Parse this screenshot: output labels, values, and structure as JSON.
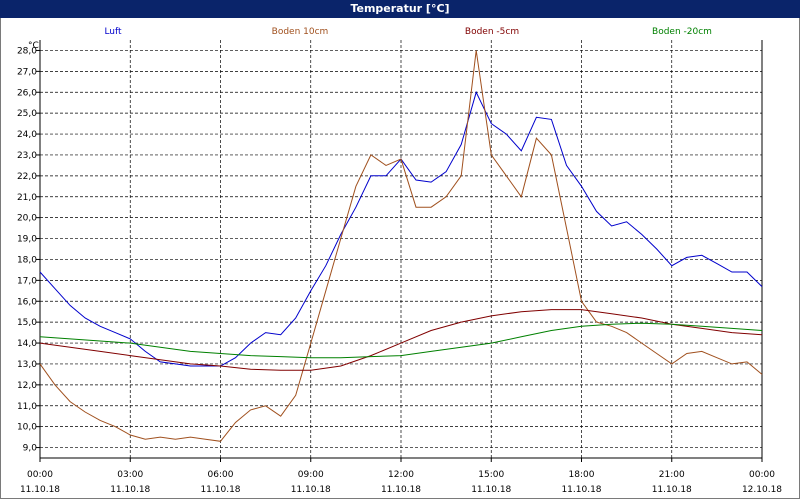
{
  "window": {
    "title": "Temperatur [°C]"
  },
  "chart_data": {
    "type": "line",
    "title": "Temperatur [°C]",
    "ylabel": "°C",
    "ylim": [
      8.5,
      28.5
    ],
    "yticks": [
      9.0,
      10.0,
      11.0,
      12.0,
      13.0,
      14.0,
      15.0,
      16.0,
      17.0,
      18.0,
      19.0,
      20.0,
      21.0,
      22.0,
      23.0,
      24.0,
      25.0,
      26.0,
      27.0,
      28.0
    ],
    "ytick_labels": [
      "9,0",
      "10,0",
      "11,0",
      "12,0",
      "13,0",
      "14,0",
      "15,0",
      "16,0",
      "17,0",
      "18,0",
      "19,0",
      "20,0",
      "21,0",
      "22,0",
      "23,0",
      "24,0",
      "25,0",
      "26,0",
      "27,0",
      "28,0"
    ],
    "xlim": [
      0,
      24
    ],
    "xticks": [
      {
        "time": "00:00",
        "date": "11.10.18"
      },
      {
        "time": "03:00",
        "date": "11.10.18"
      },
      {
        "time": "06:00",
        "date": "11.10.18"
      },
      {
        "time": "09:00",
        "date": "11.10.18"
      },
      {
        "time": "12:00",
        "date": "11.10.18"
      },
      {
        "time": "15:00",
        "date": "11.10.18"
      },
      {
        "time": "18:00",
        "date": "11.10.18"
      },
      {
        "time": "21:00",
        "date": "11.10.18"
      },
      {
        "time": "00:00",
        "date": "12.10.18"
      }
    ],
    "grid": true,
    "legend": "top",
    "series": [
      {
        "name": "Luft",
        "color": "#0000cc",
        "x": [
          0,
          0.5,
          1,
          1.5,
          2,
          2.5,
          3,
          3.5,
          4,
          4.5,
          5,
          5.5,
          6,
          6.5,
          7,
          7.5,
          8,
          8.5,
          9,
          9.5,
          10,
          10.5,
          11,
          11.5,
          12,
          12.5,
          13,
          13.5,
          14,
          14.5,
          15,
          15.5,
          16,
          16.5,
          17,
          17.5,
          18,
          18.5,
          19,
          19.5,
          20,
          20.5,
          21,
          21.5,
          22,
          22.5,
          23,
          23.5,
          24
        ],
        "y": [
          17.4,
          16.6,
          15.8,
          15.2,
          14.8,
          14.5,
          14.2,
          13.6,
          13.1,
          13.0,
          12.9,
          12.9,
          12.9,
          13.3,
          14.0,
          14.5,
          14.4,
          15.2,
          16.5,
          17.7,
          19.2,
          20.5,
          22.0,
          22.0,
          22.8,
          21.8,
          21.7,
          22.2,
          23.5,
          26.0,
          24.5,
          24.0,
          23.2,
          24.8,
          24.7,
          22.5,
          21.5,
          20.3,
          19.6,
          19.8,
          19.2,
          18.5,
          17.7,
          18.1,
          18.2,
          17.8,
          17.4,
          17.4,
          16.7
        ]
      },
      {
        "name": "Boden 10cm",
        "color": "#a0501e",
        "x": [
          0,
          0.5,
          1,
          1.5,
          2,
          2.5,
          3,
          3.5,
          4,
          4.5,
          5,
          5.5,
          6,
          6.5,
          7,
          7.5,
          8,
          8.5,
          9,
          9.5,
          10,
          10.5,
          11,
          11.5,
          12,
          12.5,
          13,
          13.5,
          14,
          14.5,
          15,
          15.5,
          16,
          16.5,
          17,
          17.5,
          18,
          18.5,
          19,
          19.5,
          20,
          20.5,
          21,
          21.5,
          22,
          22.5,
          23,
          23.5,
          24
        ],
        "y": [
          13.0,
          12.0,
          11.2,
          10.7,
          10.3,
          10.0,
          9.6,
          9.4,
          9.5,
          9.4,
          9.5,
          9.4,
          9.3,
          10.2,
          10.8,
          11.0,
          10.5,
          11.5,
          14.0,
          16.5,
          19.0,
          21.5,
          23.0,
          22.5,
          22.8,
          20.5,
          20.5,
          21.0,
          22.0,
          28.0,
          23.0,
          22.0,
          21.0,
          23.8,
          23.0,
          19.5,
          16.0,
          15.0,
          14.8,
          14.5,
          14.0,
          13.5,
          13.0,
          13.5,
          13.6,
          13.3,
          13.0,
          13.1,
          12.5
        ]
      },
      {
        "name": "Boden -5cm",
        "color": "#800000",
        "x": [
          0,
          1,
          2,
          3,
          4,
          5,
          6,
          7,
          8,
          9,
          10,
          11,
          12,
          13,
          14,
          15,
          16,
          17,
          18,
          19,
          20,
          21,
          22,
          23,
          24
        ],
        "y": [
          14.0,
          13.8,
          13.6,
          13.4,
          13.2,
          13.0,
          12.9,
          12.75,
          12.7,
          12.7,
          12.9,
          13.4,
          14.0,
          14.6,
          15.0,
          15.3,
          15.5,
          15.6,
          15.6,
          15.4,
          15.2,
          14.9,
          14.7,
          14.5,
          14.4
        ]
      },
      {
        "name": "Boden -20cm",
        "color": "#008000",
        "x": [
          0,
          1,
          2,
          3,
          4,
          5,
          6,
          7,
          8,
          9,
          10,
          11,
          12,
          13,
          14,
          15,
          16,
          17,
          18,
          19,
          20,
          21,
          22,
          23,
          24
        ],
        "y": [
          14.3,
          14.2,
          14.1,
          14.0,
          13.8,
          13.6,
          13.5,
          13.4,
          13.35,
          13.3,
          13.3,
          13.35,
          13.4,
          13.6,
          13.8,
          14.0,
          14.3,
          14.6,
          14.8,
          14.9,
          14.95,
          14.9,
          14.8,
          14.7,
          14.6
        ]
      }
    ]
  }
}
